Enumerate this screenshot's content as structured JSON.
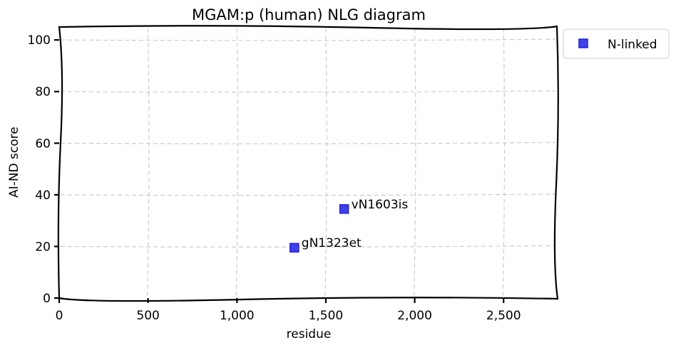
{
  "chart_data": {
    "type": "scatter",
    "title": "MGAM:p (human) NLG diagram",
    "xlabel": "residue",
    "ylabel": "AI-ND score",
    "xlim": [
      0,
      2800
    ],
    "ylim": [
      0,
      105
    ],
    "x_ticks": [
      0,
      500,
      1000,
      1500,
      2000,
      2500
    ],
    "x_tick_labels": [
      "0",
      "500",
      "1,000",
      "1,500",
      "2,000",
      "2,500"
    ],
    "y_ticks": [
      0,
      20,
      40,
      60,
      80,
      100
    ],
    "y_tick_labels": [
      "0",
      "20",
      "40",
      "60",
      "80",
      "100"
    ],
    "grid": true,
    "legend_position": "outside-top-right",
    "series": [
      {
        "name": "N-linked",
        "marker": "square",
        "color": "#1f1fe6",
        "points": [
          {
            "x": 1323,
            "y": 19.5,
            "label": "gN1323et"
          },
          {
            "x": 1603,
            "y": 34.5,
            "label": "vN1603is"
          }
        ]
      }
    ]
  }
}
